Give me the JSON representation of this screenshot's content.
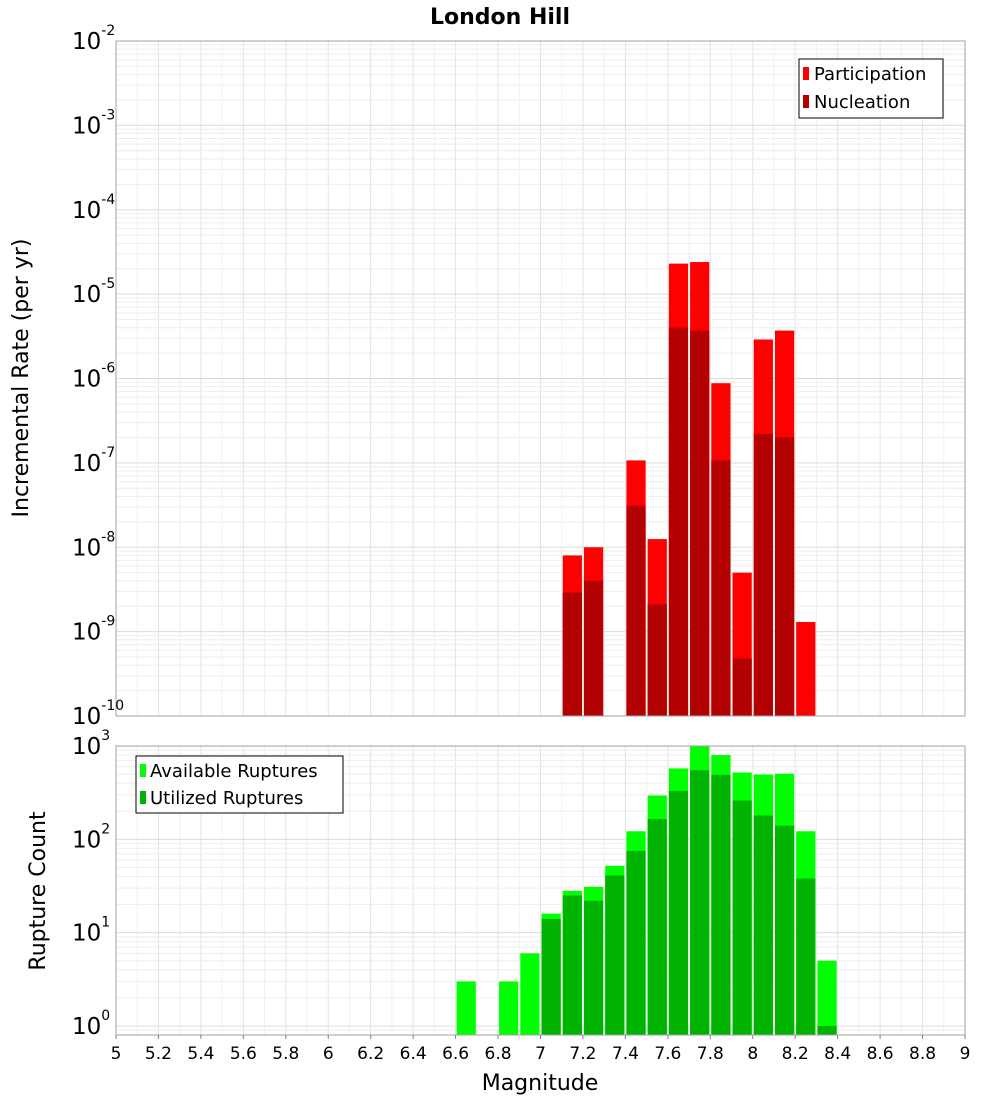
{
  "chart_data": [
    {
      "type": "bar",
      "title": "London Hill",
      "ylabel": "Incremental Rate (per yr)",
      "xlabel": "",
      "yscale": "log",
      "ylim": [
        1e-10,
        0.01
      ],
      "xlim": [
        5,
        9
      ],
      "grid": true,
      "legend_position": "top-right",
      "y_tick_exponents": [
        "-10",
        "-9",
        "-8",
        "-7",
        "-6",
        "-5",
        "-4",
        "-3",
        "-2"
      ],
      "series": [
        {
          "name": "Participation",
          "color": "#ff0000",
          "x": [
            7.15,
            7.25,
            7.45,
            7.55,
            7.65,
            7.75,
            7.85,
            7.95,
            8.05,
            8.15,
            8.25
          ],
          "values": [
            8e-09,
            1e-08,
            1.07e-07,
            1.25e-08,
            2.3e-05,
            2.4e-05,
            8.8e-07,
            5e-09,
            2.9e-06,
            3.7e-06,
            1.3e-09
          ]
        },
        {
          "name": "Nucleation",
          "color": "#b30000",
          "x": [
            7.15,
            7.25,
            7.45,
            7.55,
            7.65,
            7.75,
            7.85,
            7.95,
            8.05,
            8.15
          ],
          "values": [
            2.9e-09,
            4e-09,
            3.1e-08,
            2.1e-09,
            4e-06,
            3.7e-06,
            1.07e-07,
            4.8e-10,
            2.2e-07,
            2e-07
          ]
        }
      ]
    },
    {
      "type": "bar",
      "title": "",
      "ylabel": "Rupture Count",
      "xlabel": "Magnitude",
      "yscale": "log",
      "ylim": [
        0.8,
        1000
      ],
      "xlim": [
        5,
        9
      ],
      "grid": true,
      "legend_position": "top-left",
      "x_ticks": [
        "5",
        "5.2",
        "5.4",
        "5.6",
        "5.8",
        "6",
        "6.2",
        "6.4",
        "6.6",
        "6.8",
        "7",
        "7.2",
        "7.4",
        "7.6",
        "7.8",
        "8",
        "8.2",
        "8.4",
        "8.6",
        "8.8",
        "9"
      ],
      "y_tick_exponents": [
        "0",
        "1",
        "2",
        "3"
      ],
      "series": [
        {
          "name": "Available Ruptures",
          "color": "#00ff00",
          "x": [
            6.65,
            6.85,
            6.95,
            7.05,
            7.15,
            7.25,
            7.35,
            7.45,
            7.55,
            7.65,
            7.75,
            7.85,
            7.95,
            8.05,
            8.15,
            8.25,
            8.35
          ],
          "values": [
            3,
            3,
            6,
            16,
            28,
            31,
            52,
            122,
            295,
            575,
            1000,
            800,
            520,
            495,
            505,
            122,
            5
          ]
        },
        {
          "name": "Utilized Ruptures",
          "color": "#00b300",
          "x": [
            7.05,
            7.15,
            7.25,
            7.35,
            7.45,
            7.55,
            7.65,
            7.75,
            7.85,
            7.95,
            8.05,
            8.15,
            8.25,
            8.35
          ],
          "values": [
            14,
            25,
            22,
            41,
            75,
            165,
            330,
            550,
            490,
            260,
            180,
            140,
            38,
            1
          ]
        }
      ]
    }
  ]
}
